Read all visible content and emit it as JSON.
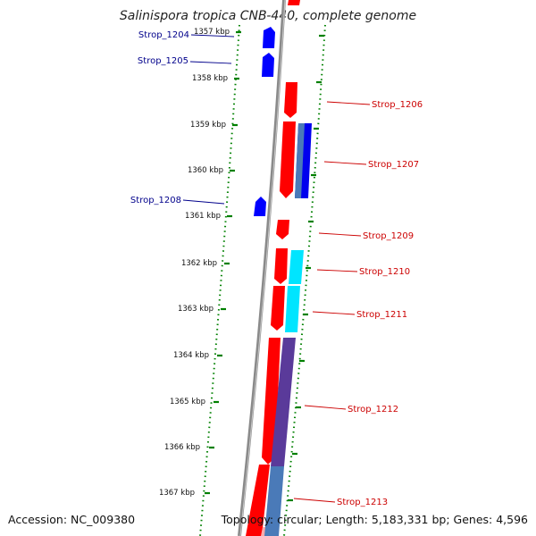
{
  "map": {
    "title": "Salinispora tropica CNB-440, complete genome",
    "accession": "Accession: NC_009380",
    "summary": "Topology: circular; Length: 5,183,331 bp; Genes: 4,596",
    "ticks": [
      "1357 kbp",
      "1358 kbp",
      "1359 kbp",
      "1360 kbp",
      "1361 kbp",
      "1362 kbp",
      "1363 kbp",
      "1364 kbp",
      "1365 kbp",
      "1366 kbp",
      "1367 kbp"
    ],
    "genes_left": [
      "Strop_1204",
      "Strop_1205",
      "Strop_1208"
    ],
    "genes_right": [
      "Strop_1206",
      "Strop_1207",
      "Strop_1209",
      "Strop_1210",
      "Strop_1211",
      "Strop_1212",
      "Strop_1213"
    ],
    "colors": {
      "forward_gene": "#0000ff",
      "reverse_gene": "#ff0000",
      "backbone": "#808080",
      "tick": "#008000",
      "cyan_feature": "#00e5ff",
      "purple_feature": "#5a3a9a",
      "steel_feature": "#4a7ab8",
      "label_forward": "#00008b",
      "label_reverse": "#cc0000"
    }
  }
}
